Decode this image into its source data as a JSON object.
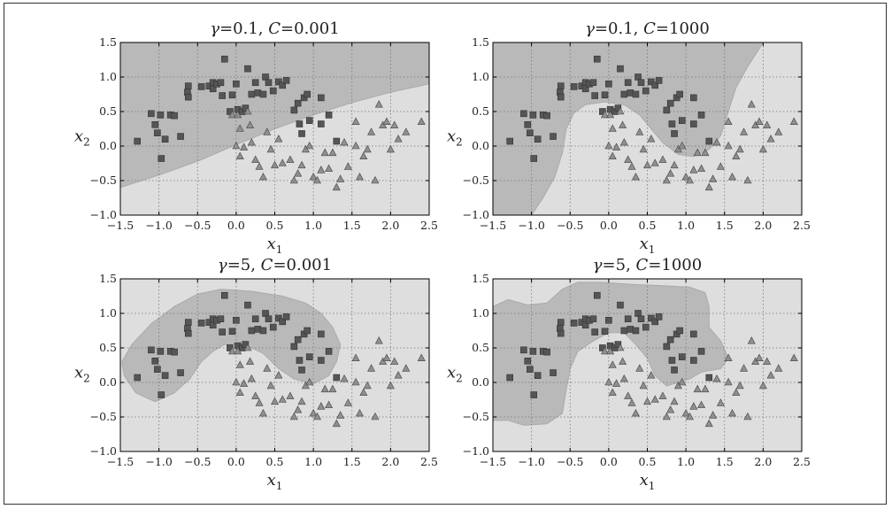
{
  "colors": {
    "class0_region": "#b9b9b9",
    "class1_region": "#dedede",
    "square_marker": "#555555",
    "triangle_marker": "#8f8f8f",
    "grid": "#777777"
  },
  "chart_data": [
    {
      "type": "scatter",
      "title": "γ=0.1, C=0.001",
      "title_gamma": "0.1",
      "title_C": "0.001",
      "xlabel": "x1",
      "ylabel": "x2",
      "xlim": [
        -1.5,
        2.5
      ],
      "ylim": [
        -1.0,
        1.5
      ],
      "xticks": [
        "−1.5",
        "−1.0",
        "−0.5",
        "0.0",
        "0.5",
        "1.0",
        "1.5",
        "2.0",
        "2.5"
      ],
      "yticks": [
        "−1.0",
        "−0.5",
        "0.0",
        "0.5",
        "1.0",
        "1.5"
      ],
      "grid": true,
      "boundary": "linear"
    },
    {
      "type": "scatter",
      "title": "γ=0.1, C=1000",
      "title_gamma": "0.1",
      "title_C": "1000",
      "xlabel": "x1",
      "ylabel": "x2",
      "xlim": [
        -1.5,
        2.5
      ],
      "ylim": [
        -1.0,
        1.5
      ],
      "xticks": [
        "−1.5",
        "−1.0",
        "−0.5",
        "0.0",
        "0.5",
        "1.0",
        "1.5",
        "2.0",
        "2.5"
      ],
      "yticks": [
        "−1.0",
        "−0.5",
        "0.0",
        "0.5",
        "1.0",
        "1.5"
      ],
      "grid": true,
      "boundary": "moon"
    },
    {
      "type": "scatter",
      "title": "γ=5, C=0.001",
      "title_gamma": "5",
      "title_C": "0.001",
      "xlabel": "x1",
      "ylabel": "x2",
      "xlim": [
        -1.5,
        2.5
      ],
      "ylim": [
        -1.0,
        1.5
      ],
      "xticks": [
        "−1.5",
        "−1.0",
        "−0.5",
        "0.0",
        "0.5",
        "1.0",
        "1.5",
        "2.0",
        "2.5"
      ],
      "yticks": [
        "−1.0",
        "−0.5",
        "0.0",
        "0.5",
        "1.0",
        "1.5"
      ],
      "grid": true,
      "boundary": "arc"
    },
    {
      "type": "scatter",
      "title": "γ=5, C=1000",
      "title_gamma": "5",
      "title_C": "1000",
      "xlabel": "x1",
      "ylabel": "x2",
      "xlim": [
        -1.5,
        2.5
      ],
      "ylim": [
        -1.0,
        1.5
      ],
      "xticks": [
        "−1.5",
        "−1.0",
        "−0.5",
        "0.0",
        "0.5",
        "1.0",
        "1.5",
        "2.0",
        "2.5"
      ],
      "yticks": [
        "−1.0",
        "−0.5",
        "0.0",
        "0.5",
        "1.0",
        "1.5"
      ],
      "grid": true,
      "boundary": "overfit"
    }
  ],
  "dataset": {
    "squares": [
      [
        -1.28,
        0.07
      ],
      [
        -1.1,
        0.47
      ],
      [
        -1.05,
        0.31
      ],
      [
        -1.02,
        0.19
      ],
      [
        -0.98,
        0.45
      ],
      [
        -0.97,
        -0.18
      ],
      [
        -0.92,
        0.1
      ],
      [
        -0.85,
        0.45
      ],
      [
        -0.8,
        0.44
      ],
      [
        -0.72,
        0.14
      ],
      [
        -0.63,
        0.78
      ],
      [
        -0.62,
        0.87
      ],
      [
        -0.62,
        0.71
      ],
      [
        -0.45,
        0.86
      ],
      [
        -0.35,
        0.87
      ],
      [
        -0.3,
        0.92
      ],
      [
        -0.3,
        0.83
      ],
      [
        -0.25,
        0.9
      ],
      [
        -0.2,
        0.92
      ],
      [
        -0.18,
        0.73
      ],
      [
        -0.15,
        1.26
      ],
      [
        -0.08,
        0.5
      ],
      [
        -0.05,
        0.74
      ],
      [
        0.0,
        0.9
      ],
      [
        0.02,
        0.53
      ],
      [
        0.08,
        0.5
      ],
      [
        0.12,
        0.55
      ],
      [
        0.15,
        1.12
      ],
      [
        0.2,
        0.75
      ],
      [
        0.25,
        0.92
      ],
      [
        0.28,
        0.77
      ],
      [
        0.35,
        0.75
      ],
      [
        0.38,
        1.0
      ],
      [
        0.42,
        0.92
      ],
      [
        0.48,
        0.8
      ],
      [
        0.55,
        0.93
      ],
      [
        0.6,
        0.88
      ],
      [
        0.65,
        0.95
      ],
      [
        0.75,
        0.52
      ],
      [
        0.8,
        0.62
      ],
      [
        0.82,
        0.32
      ],
      [
        0.85,
        0.18
      ],
      [
        0.88,
        0.7
      ],
      [
        0.92,
        0.75
      ],
      [
        0.95,
        0.37
      ],
      [
        1.1,
        0.7
      ],
      [
        1.1,
        0.32
      ],
      [
        1.2,
        0.45
      ],
      [
        1.3,
        0.07
      ]
    ],
    "triangles": [
      [
        -0.05,
        0.45
      ],
      [
        0.02,
        0.45
      ],
      [
        0.05,
        0.25
      ],
      [
        0.0,
        0.0
      ],
      [
        0.05,
        -0.15
      ],
      [
        0.1,
        -0.02
      ],
      [
        0.15,
        0.5
      ],
      [
        0.18,
        0.3
      ],
      [
        0.2,
        0.05
      ],
      [
        0.25,
        -0.2
      ],
      [
        0.3,
        -0.3
      ],
      [
        0.35,
        -0.45
      ],
      [
        0.4,
        0.2
      ],
      [
        0.45,
        -0.05
      ],
      [
        0.5,
        -0.28
      ],
      [
        0.55,
        0.1
      ],
      [
        0.6,
        -0.25
      ],
      [
        0.7,
        -0.2
      ],
      [
        0.75,
        -0.5
      ],
      [
        0.8,
        -0.4
      ],
      [
        0.85,
        -0.28
      ],
      [
        0.9,
        -0.05
      ],
      [
        1.0,
        -0.45
      ],
      [
        1.05,
        -0.5
      ],
      [
        1.1,
        -0.35
      ],
      [
        1.2,
        -0.33
      ],
      [
        1.25,
        -0.1
      ],
      [
        1.3,
        -0.6
      ],
      [
        1.35,
        -0.48
      ],
      [
        1.45,
        -0.3
      ],
      [
        1.55,
        0.0
      ],
      [
        1.6,
        -0.45
      ],
      [
        1.65,
        -0.15
      ],
      [
        1.7,
        -0.05
      ],
      [
        1.75,
        0.2
      ],
      [
        1.8,
        -0.5
      ],
      [
        1.85,
        0.6
      ],
      [
        1.9,
        0.3
      ],
      [
        1.95,
        0.35
      ],
      [
        2.0,
        -0.05
      ],
      [
        2.05,
        0.3
      ],
      [
        2.1,
        0.1
      ],
      [
        2.2,
        0.2
      ],
      [
        2.4,
        0.35
      ],
      [
        1.4,
        0.05
      ],
      [
        1.15,
        -0.1
      ],
      [
        0.95,
        0.0
      ],
      [
        1.55,
        0.35
      ]
    ]
  }
}
